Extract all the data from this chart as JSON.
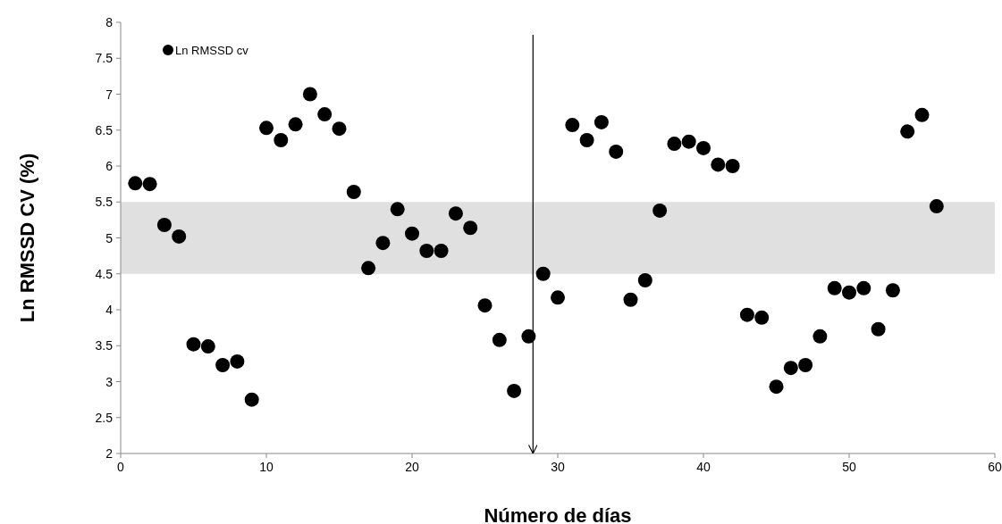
{
  "chart_data": {
    "type": "scatter",
    "xlabel": "Número de días",
    "ylabel": "Ln RMSSD CV (%)",
    "xlim": [
      0,
      60
    ],
    "xticks": [
      0,
      10,
      20,
      30,
      40,
      50,
      60
    ],
    "ylim": [
      2,
      8
    ],
    "yticks": [
      2,
      2.5,
      3,
      3.5,
      4,
      4.5,
      5,
      5.5,
      6,
      6.5,
      7,
      7.5,
      8
    ],
    "grid": false,
    "legend": "top left",
    "marker": "circle",
    "bands": [
      {
        "axis": "y",
        "from": 4.5,
        "to": 5.5,
        "color": "#e0e0e0"
      }
    ],
    "ref_lines": [
      {
        "axis": "x",
        "value": 28.3,
        "color": "#000000"
      }
    ],
    "series": [
      {
        "name": "Ln RMSSD cv",
        "color": "#000000",
        "x": [
          1,
          2,
          3,
          4,
          5,
          6,
          7,
          8,
          9,
          10,
          11,
          12,
          13,
          14,
          15,
          16,
          17,
          18,
          19,
          20,
          21,
          22,
          23,
          24,
          25,
          26,
          27,
          28,
          29,
          30,
          31,
          32,
          33,
          34,
          35,
          36,
          37,
          38,
          39,
          40,
          41,
          42,
          43,
          44,
          45,
          46,
          47,
          48,
          49,
          50,
          51,
          52,
          53,
          54,
          55,
          56
        ],
        "values": [
          5.76,
          5.75,
          5.18,
          5.02,
          3.52,
          3.49,
          3.23,
          3.28,
          2.75,
          6.53,
          6.36,
          6.58,
          7.0,
          6.72,
          6.52,
          5.64,
          4.58,
          4.93,
          5.4,
          5.06,
          4.82,
          4.82,
          5.34,
          5.14,
          4.06,
          3.58,
          2.87,
          3.63,
          4.5,
          4.17,
          6.57,
          6.36,
          6.61,
          6.2,
          4.14,
          4.41,
          5.38,
          6.31,
          6.34,
          6.25,
          6.02,
          6.0,
          3.93,
          3.89,
          2.93,
          3.19,
          3.23,
          3.63,
          4.3,
          4.24,
          4.3,
          3.73,
          4.27,
          6.48,
          6.71,
          5.44
        ]
      }
    ]
  }
}
